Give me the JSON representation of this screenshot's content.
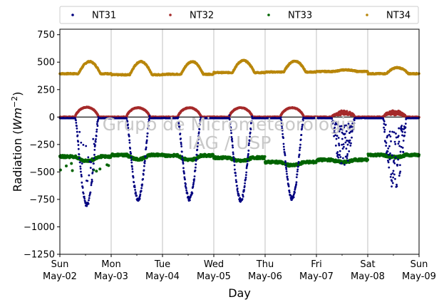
{
  "chart_data": {
    "type": "scatter",
    "xlabel": "Day",
    "ylabel_main": "Radiation (",
    "ylabel_unit": "Wm",
    "ylabel_exp": "−2",
    "ylabel_close": ")",
    "ylim": [
      -1250,
      800
    ],
    "yticks": [
      750,
      500,
      250,
      0,
      -250,
      -500,
      -750,
      -1000,
      -1250
    ],
    "ytick_labels": [
      "750",
      "500",
      "250",
      "0",
      "−250",
      "−500",
      "−750",
      "−1000",
      "−1250"
    ],
    "xlim": [
      "2021-05-02",
      "2021-05-09"
    ],
    "x_ticks": [
      {
        "day": "Sun",
        "date": "May-02"
      },
      {
        "day": "Mon",
        "date": "May-03"
      },
      {
        "day": "Tue",
        "date": "May-04"
      },
      {
        "day": "Wed",
        "date": "May-05"
      },
      {
        "day": "Thu",
        "date": "May-06"
      },
      {
        "day": "Fri",
        "date": "May-07"
      },
      {
        "day": "Sat",
        "date": "May-08"
      },
      {
        "day": "Sun",
        "date": "May-09"
      }
    ],
    "grid": "vertical",
    "legend_placement": "top, outside, 4 columns",
    "watermark": [
      "Grupo de Micrometeorologia",
      "IAG / USP"
    ],
    "series": [
      {
        "name": "NT31",
        "color": "#00007f",
        "daily_min": [
          -800,
          -750,
          -750,
          -760,
          -740,
          -480,
          -680
        ],
        "night_level": -10,
        "day_pattern": "clear",
        "cloudy_days": [
          5,
          6
        ]
      },
      {
        "name": "NT32",
        "color": "#a52a2a",
        "daily_peak": [
          90,
          85,
          85,
          85,
          85,
          50,
          50
        ],
        "night_level": 0
      },
      {
        "name": "NT33",
        "color": "#006400",
        "daily_base": [
          -360,
          -345,
          -350,
          -370,
          -410,
          -390,
          -345
        ],
        "daily_dip": [
          -40,
          -40,
          -40,
          -30,
          -30,
          -20,
          -20
        ]
      },
      {
        "name": "NT34",
        "color": "#b8860b",
        "daily_base": [
          395,
          385,
          390,
          405,
          410,
          415,
          395
        ],
        "daily_peak": [
          505,
          505,
          505,
          515,
          510,
          430,
          450
        ]
      }
    ]
  }
}
